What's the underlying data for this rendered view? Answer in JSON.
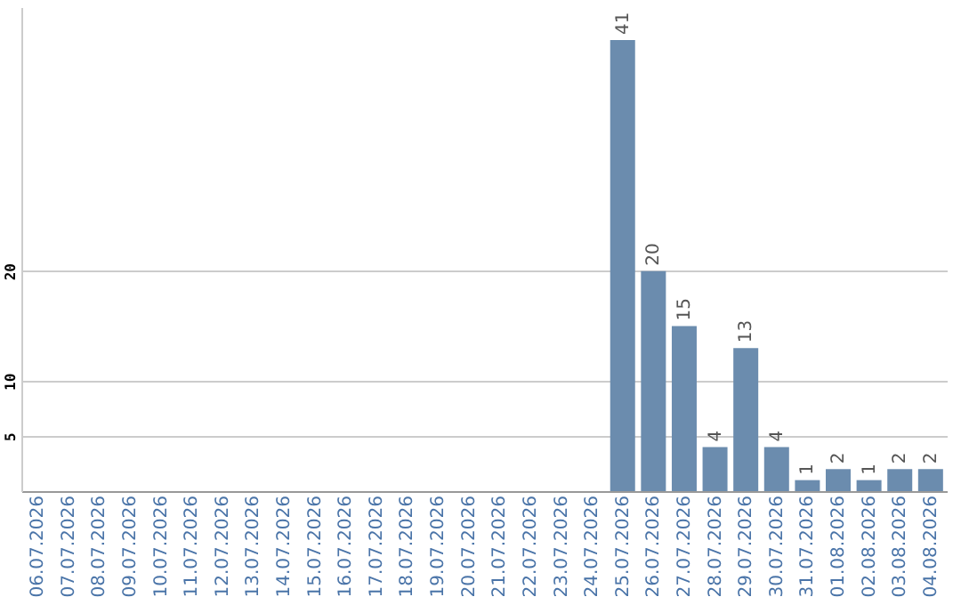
{
  "chart_data": {
    "type": "bar",
    "categories": [
      "06.07.2026",
      "07.07.2026",
      "08.07.2026",
      "09.07.2026",
      "10.07.2026",
      "11.07.2026",
      "12.07.2026",
      "13.07.2026",
      "14.07.2026",
      "15.07.2026",
      "16.07.2026",
      "17.07.2026",
      "18.07.2026",
      "19.07.2026",
      "20.07.2026",
      "21.07.2026",
      "22.07.2026",
      "23.07.2026",
      "24.07.2026",
      "25.07.2026",
      "26.07.2026",
      "27.07.2026",
      "28.07.2026",
      "29.07.2026",
      "30.07.2026",
      "31.07.2026",
      "01.08.2026",
      "02.08.2026",
      "03.08.2026",
      "04.08.2026"
    ],
    "values": [
      0,
      0,
      0,
      0,
      0,
      0,
      0,
      0,
      0,
      0,
      0,
      0,
      0,
      0,
      0,
      0,
      0,
      0,
      0,
      41,
      20,
      15,
      4,
      13,
      4,
      1,
      2,
      1,
      2,
      2
    ],
    "value_labels": [
      null,
      null,
      null,
      null,
      null,
      null,
      null,
      null,
      null,
      null,
      null,
      null,
      null,
      null,
      null,
      null,
      null,
      null,
      null,
      "41",
      "20",
      "15",
      "4",
      "13",
      "4",
      "1",
      "2",
      "1",
      "2",
      "2"
    ],
    "color": "#6b8cae",
    "ylim": [
      0,
      44
    ],
    "yticks": [
      5,
      10,
      20
    ],
    "grid": "y"
  }
}
